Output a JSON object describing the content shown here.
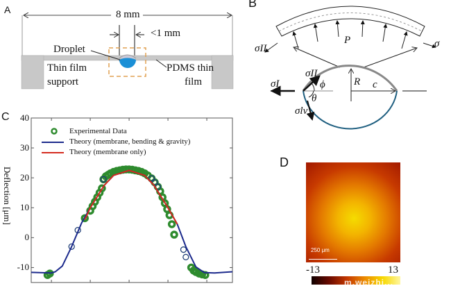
{
  "panels": {
    "a": {
      "label": "A",
      "width_label": "8 mm",
      "gap_label": "<1 mm",
      "droplet_label": "Droplet",
      "support_label_1": "Thin film",
      "support_label_2": "support",
      "pdms_label_1": "PDMS thin",
      "pdms_label_2": "film",
      "colors": {
        "droplet": "#1a8fd6",
        "support": "#c8c8c8",
        "box": "#e0a050"
      }
    },
    "b": {
      "label": "B",
      "sigma_II_top": "σII",
      "sigma_top_right": "σ",
      "pressure": "P",
      "sigma_II": "σII",
      "sigma_I": "σI",
      "phi": "ϕ",
      "theta": "θ",
      "sigma_lv": "σlv",
      "radius": "R",
      "half_width": "c"
    },
    "c": {
      "label": "C",
      "chart_data": {
        "type": "line",
        "ylabel": "Deflection [μm]",
        "xlabel": "",
        "ylim": [
          -15,
          40
        ],
        "yticks": [
          -10,
          0,
          10,
          20,
          30,
          40
        ],
        "xlim": [
          -1.26,
          1.33
        ],
        "xticks": [
          -1,
          -0.5,
          0,
          0.5,
          1
        ],
        "xtick_labels_shown": false,
        "legend_position": "top-left",
        "series": [
          {
            "name": "Experimental Data",
            "kind": "scatter",
            "color": "#2e8b2e",
            "x": [
              -1.05,
              -1.02,
              -0.74,
              -0.66,
              -0.57,
              -0.5,
              -0.47,
              -0.44,
              -0.41,
              -0.38,
              -0.35,
              -0.33,
              -0.3,
              -0.27,
              -0.24,
              -0.2,
              -0.16,
              -0.12,
              -0.08,
              -0.04,
              0,
              0.04,
              0.08,
              0.12,
              0.16,
              0.2,
              0.24,
              0.29,
              0.33,
              0.37,
              0.4,
              0.43,
              0.46,
              0.49,
              0.52,
              0.55,
              0.58,
              0.7,
              0.73,
              0.8,
              0.83,
              0.86,
              0.9,
              0.94,
              0.98
            ],
            "y": [
              -12.5,
              -12,
              -3,
              2.5,
              6.5,
              9,
              10.5,
              12,
              13.5,
              15,
              16.5,
              19.5,
              20.5,
              21,
              21.5,
              22,
              22.3,
              22.5,
              22.7,
              22.8,
              22.8,
              22.7,
              22.5,
              22.3,
              22,
              21.5,
              20.8,
              19.8,
              18.5,
              17,
              15.5,
              13.5,
              11.5,
              9.5,
              7.5,
              4.5,
              1,
              -4,
              -6.5,
              -10,
              -11,
              -11.5,
              -12,
              -12.3,
              -12.5
            ]
          },
          {
            "name": "Theory (membrane, bending & gravity)",
            "kind": "line",
            "color": "#1c2a8c",
            "x": [
              -1.26,
              -1.0,
              -0.95,
              -0.86,
              -0.74,
              -0.61,
              -0.5,
              -0.32,
              -0.2,
              0,
              0.2,
              0.32,
              0.5,
              0.62,
              0.73,
              0.86,
              0.97,
              1.1,
              1.33
            ],
            "y": [
              -11.6,
              -11.8,
              -11.4,
              -9.5,
              -3,
              5,
              10,
              17.5,
              20.8,
              22.5,
              20.8,
              17.5,
              10,
              4.5,
              -3,
              -9.8,
              -11.7,
              -11.8,
              -11.4
            ]
          },
          {
            "name": "Theory (membrane only)",
            "kind": "line",
            "color": "#d42a1e",
            "x": [
              -0.57,
              -0.5,
              -0.32,
              -0.2,
              0,
              0.2,
              0.32,
              0.5,
              0.62
            ],
            "y": [
              6,
              10,
              17.5,
              20.8,
              22.5,
              20.8,
              17.5,
              10,
              4.5
            ]
          }
        ]
      }
    },
    "d": {
      "label": "D",
      "scale_bar": "250 μm",
      "colorbar_min": "-13",
      "colorbar_max": "13",
      "watermark": "m.weizhi..."
    }
  }
}
